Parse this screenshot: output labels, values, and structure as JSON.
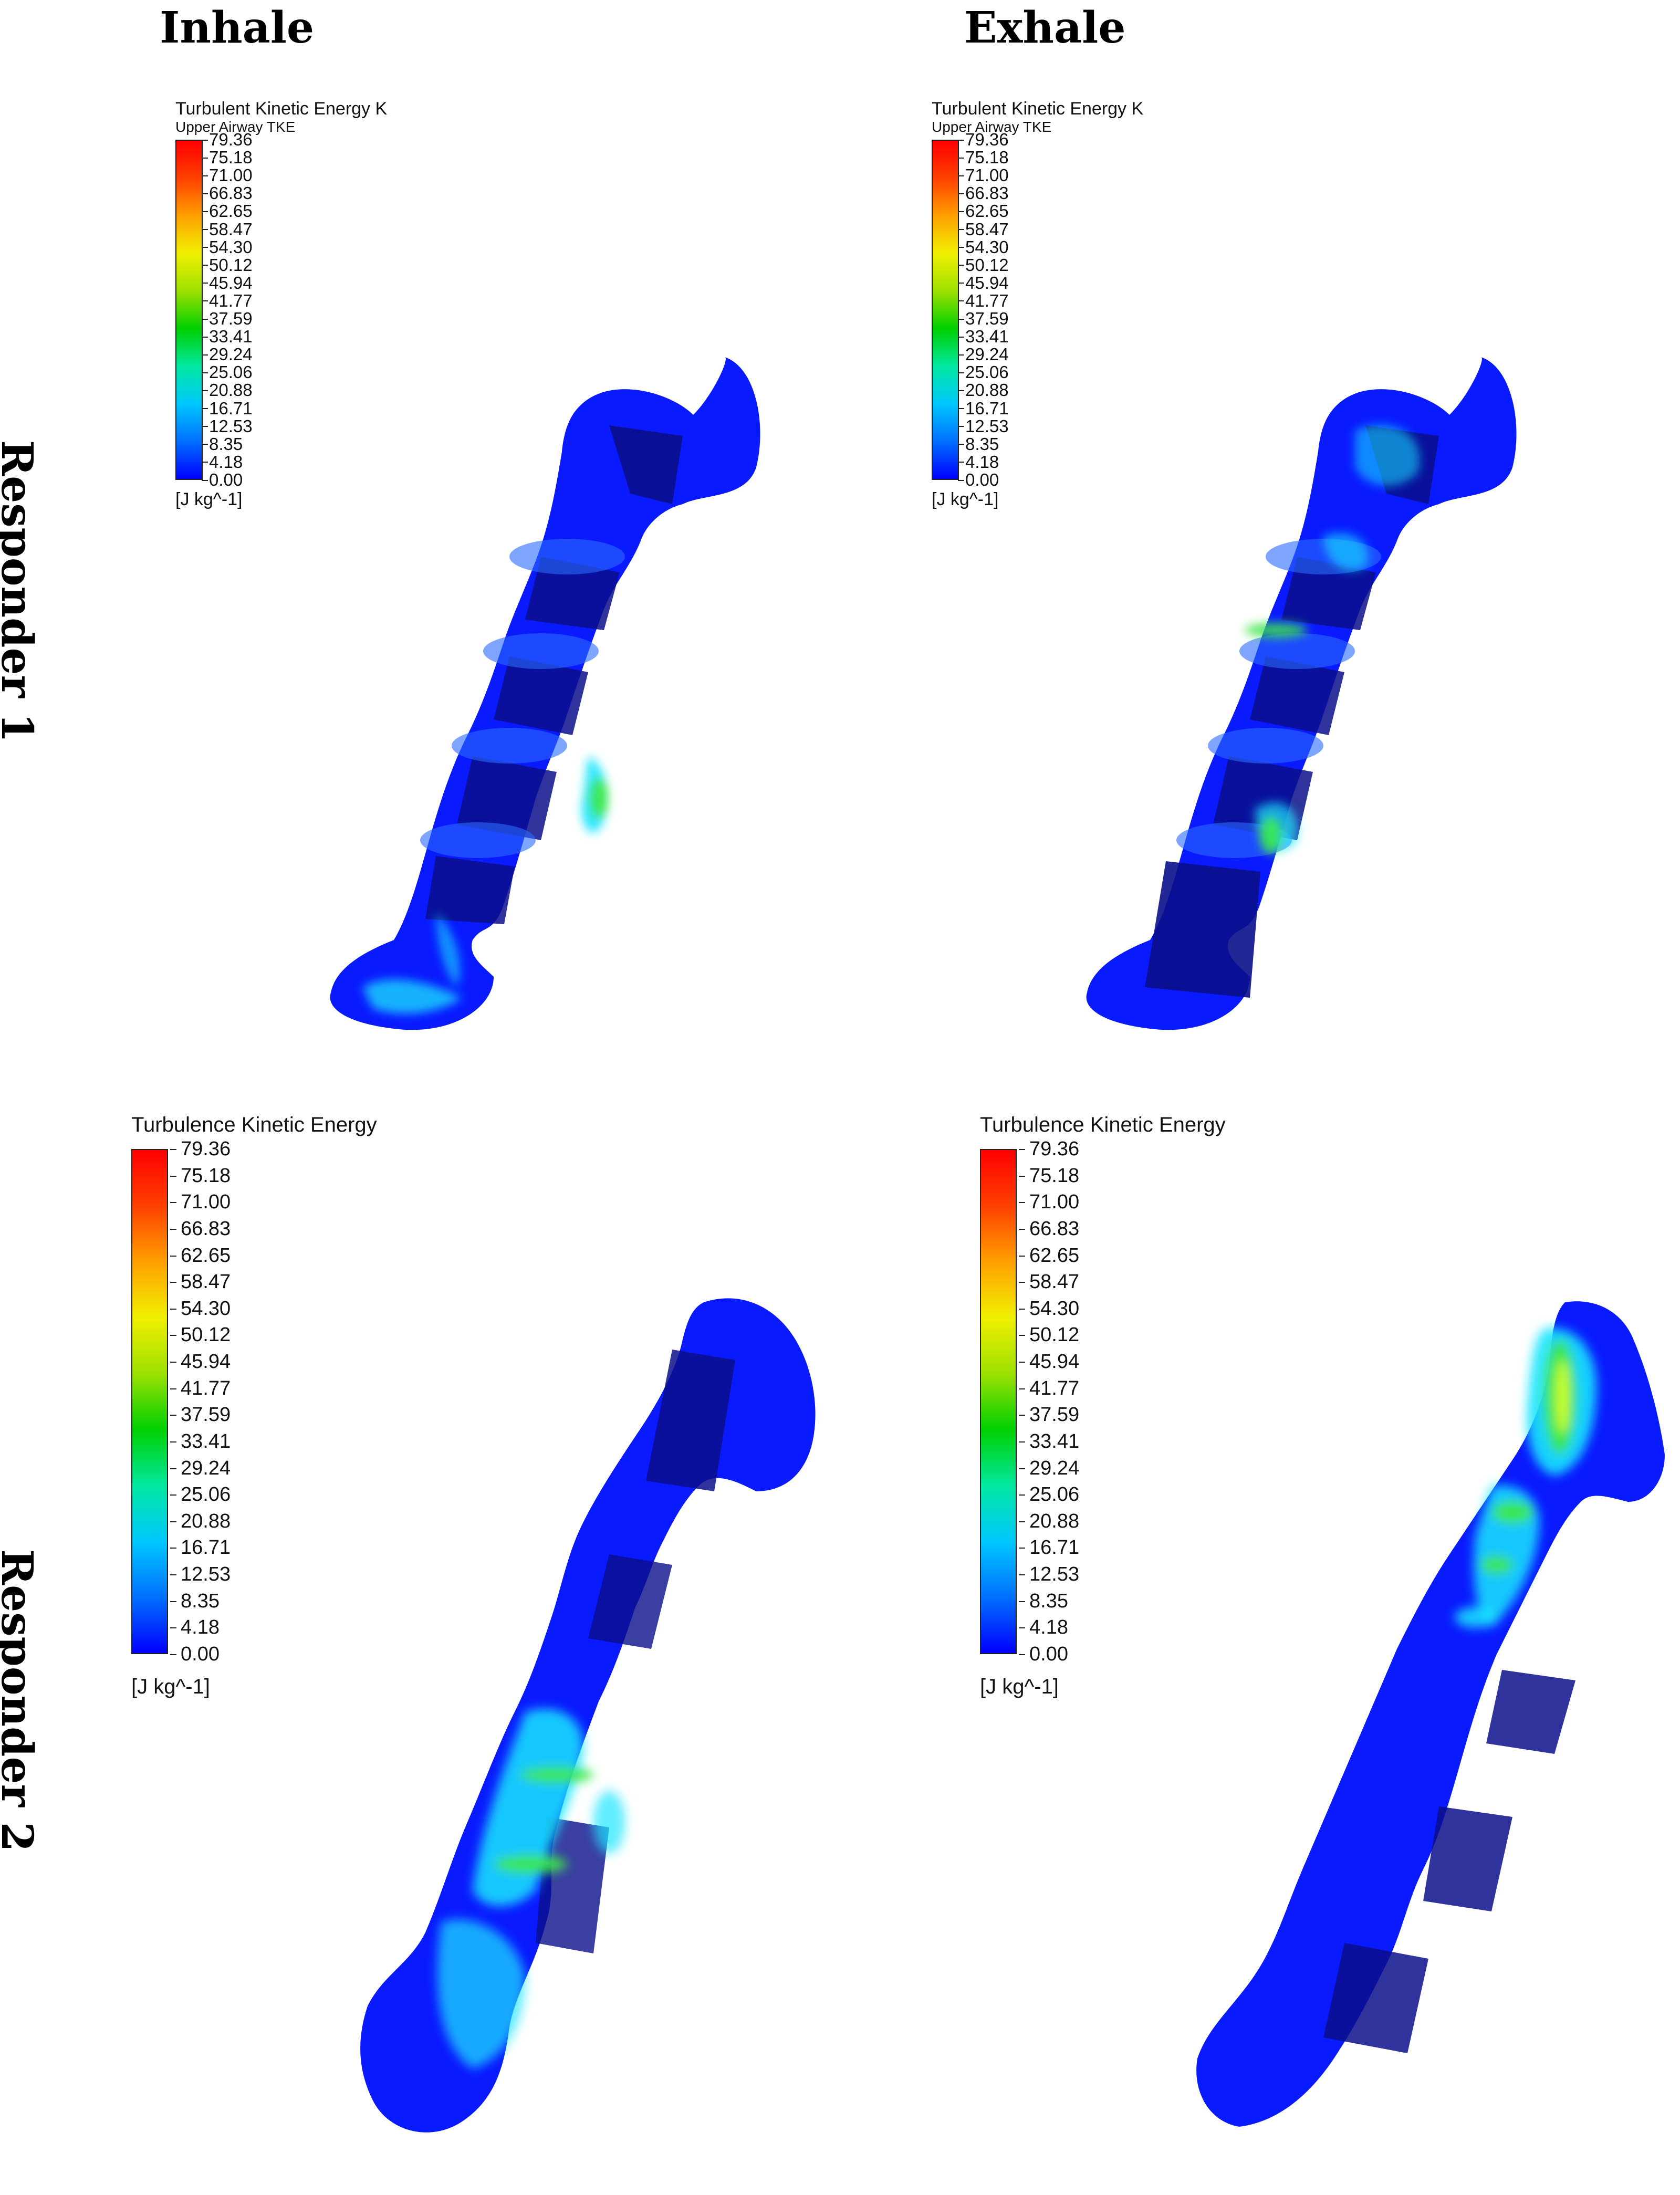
{
  "columns": {
    "inhale": "Inhale",
    "exhale": "Exhale"
  },
  "rows": {
    "responder1": "Responder 1",
    "responder2": "Responder 2"
  },
  "colorbar_gradient": [
    "#0000ff",
    "#0070ff",
    "#00c8ff",
    "#00e8a0",
    "#00d000",
    "#9ee000",
    "#f0f000",
    "#ffa000",
    "#ff4000",
    "#ff0000"
  ],
  "legends": {
    "r1_inhale": {
      "title": "Turbulent Kinetic Energy K",
      "subtitle": "Upper Airway TKE",
      "unit": "[J kg^-1]",
      "ticks": [
        "79.36",
        "75.18",
        "71.00",
        "66.83",
        "62.65",
        "58.47",
        "54.30",
        "50.12",
        "45.94",
        "41.77",
        "37.59",
        "33.41",
        "29.24",
        "25.06",
        "20.88",
        "16.71",
        "12.53",
        "8.35",
        "4.18",
        "0.00"
      ]
    },
    "r1_exhale": {
      "title": "Turbulent Kinetic Energy K",
      "subtitle": "Upper Airway TKE",
      "unit": "[J kg^-1]",
      "ticks": [
        "79.36",
        "75.18",
        "71.00",
        "66.83",
        "62.65",
        "58.47",
        "54.30",
        "50.12",
        "45.94",
        "41.77",
        "37.59",
        "33.41",
        "29.24",
        "25.06",
        "20.88",
        "16.71",
        "12.53",
        "8.35",
        "4.18",
        "0.00"
      ]
    },
    "r2_inhale": {
      "title": "Turbulence Kinetic Energy",
      "unit": "[J kg^-1]",
      "ticks": [
        "79.36",
        "75.18",
        "71.00",
        "66.83",
        "62.65",
        "58.47",
        "54.30",
        "50.12",
        "45.94",
        "41.77",
        "37.59",
        "33.41",
        "29.24",
        "25.06",
        "20.88",
        "16.71",
        "12.53",
        "8.35",
        "4.18",
        "0.00"
      ]
    },
    "r2_exhale": {
      "title": "Turbulence Kinetic Energy",
      "unit": "[J kg^-1]",
      "ticks": [
        "79.36",
        "75.18",
        "71.00",
        "66.83",
        "62.65",
        "58.47",
        "54.30",
        "50.12",
        "45.94",
        "41.77",
        "37.59",
        "33.41",
        "29.24",
        "25.06",
        "20.88",
        "16.71",
        "12.53",
        "8.35",
        "4.18",
        "0.00"
      ]
    }
  },
  "colors": {
    "airway_base": "#0a1aff",
    "airway_shadow": "#0a0f8a",
    "airway_highlight": "#2a6bff",
    "tke_cyan": "#19e6ff",
    "tke_green": "#3de84a",
    "tke_yellow": "#d8ff2a"
  }
}
